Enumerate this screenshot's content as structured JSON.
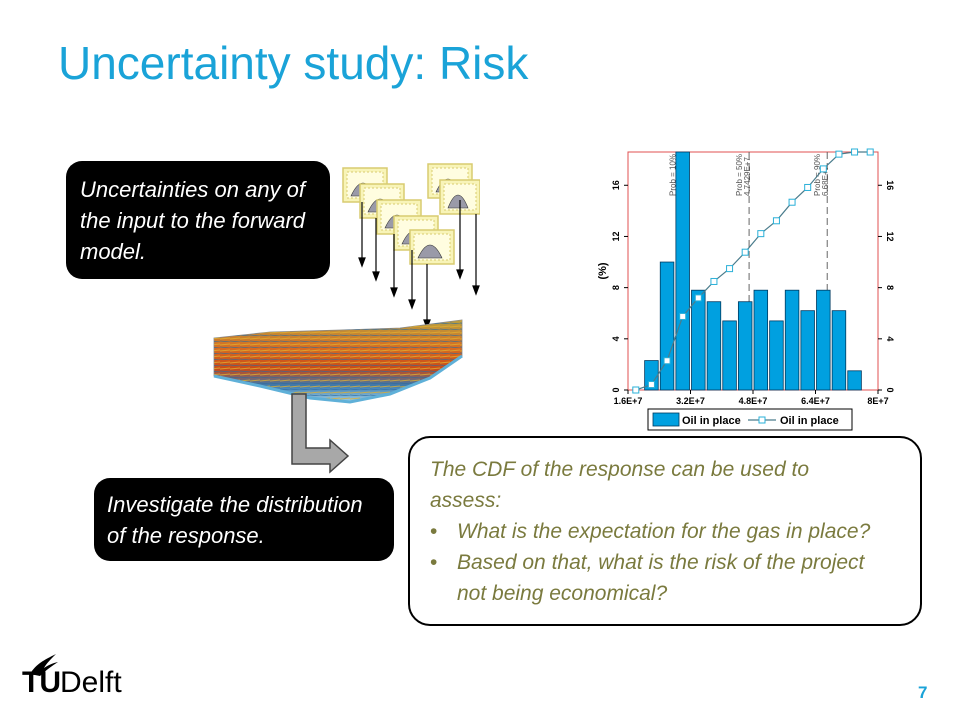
{
  "slide": {
    "title": "Uncertainty study: Risk",
    "page_number": "7",
    "logo_text_tu": "TU",
    "logo_text_delft": "Delft"
  },
  "box_top": {
    "lines": [
      "Uncertainties on any of",
      "the input to the forward",
      "model."
    ]
  },
  "box_bottom": {
    "lines": [
      "Investigate the distribution",
      "of the response."
    ]
  },
  "box_right": {
    "intro_lines": [
      "The CDF of the response can be used to",
      "assess:"
    ],
    "bullets": [
      {
        "lines": [
          "What is the expectation for the gas in place?"
        ]
      },
      {
        "lines": [
          "Based on that, what is the risk of the project",
          "not being economical?"
        ]
      }
    ]
  },
  "colors": {
    "accent": "#1aa3d8",
    "bar": "#00a0e0",
    "cdf_line": "#4a7c8c",
    "axis_frame": "#e05050",
    "italic_text": "#7a7a3e"
  },
  "chart_data": {
    "type": "bar",
    "x_tick_labels": [
      "1.6E+7",
      "3.2E+7",
      "4.8E+7",
      "6.4E+7",
      "8E+7"
    ],
    "x_ticks": [
      16000000,
      32000000,
      48000000,
      64000000,
      80000000
    ],
    "xlim": [
      16000000,
      80000000
    ],
    "ylabel_left": "(%)",
    "y_tick_labels": [
      "0",
      "4",
      "8",
      "12",
      "16"
    ],
    "y_ticks": [
      0,
      4,
      8,
      12,
      16
    ],
    "ylim": [
      0,
      18.6
    ],
    "histogram": {
      "name": "Oil in place",
      "bin_width": 4000000,
      "bin_lefts": [
        20000000,
        24000000,
        28000000,
        32000000,
        36000000,
        40000000,
        44000000,
        48000000,
        52000000,
        56000000,
        60000000,
        64000000,
        68000000,
        72000000
      ],
      "values": [
        2.3,
        10.0,
        18.6,
        7.8,
        6.9,
        5.4,
        6.9,
        7.8,
        5.4,
        7.8,
        6.2,
        7.8,
        6.2,
        1.5
      ]
    },
    "cdf": {
      "name": "Oil in place",
      "x": [
        18000000,
        22000000,
        26000000,
        30000000,
        34000000,
        38000000,
        42000000,
        46000000,
        50000000,
        54000000,
        58000000,
        62000000,
        66000000,
        70000000,
        74000000,
        78000000
      ],
      "values_percent": [
        0,
        2.3,
        12.3,
        30.9,
        38.7,
        45.6,
        51.0,
        57.9,
        65.7,
        71.1,
        78.9,
        85.1,
        92.9,
        99.1,
        100,
        100
      ]
    },
    "percentile_lines": [
      {
        "x": 30000000,
        "label_top": "Prob = 10%",
        "label_bottom": "2.8976E+7"
      },
      {
        "x": 47000000,
        "label_top": "Prob = 50%",
        "label_bottom": "4.7429E+7"
      },
      {
        "x": 67000000,
        "label_top": "Prob = 90%",
        "label_bottom": "6.68E+7"
      }
    ],
    "legend": {
      "position": "bottom",
      "entries": [
        "Oil in place",
        "Oil in place"
      ]
    }
  }
}
